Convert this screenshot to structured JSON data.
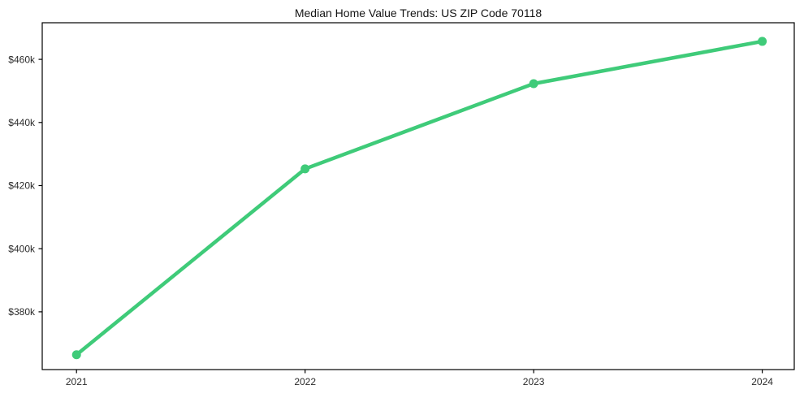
{
  "figure": {
    "background": "#ffffff"
  },
  "chart_data": {
    "type": "line",
    "title": "Median Home Value Trends: US ZIP Code 70118",
    "x": [
      2021,
      2022,
      2023,
      2024
    ],
    "values": [
      366400,
      425300,
      452300,
      465700
    ],
    "xlabel": "",
    "ylabel": "",
    "xlim": [
      2020.85,
      2024.14
    ],
    "ylim": [
      361700,
      471600
    ],
    "xticks": {
      "values": [
        2021,
        2022,
        2023,
        2024
      ],
      "labels": [
        "2021",
        "2022",
        "2023",
        "2024"
      ]
    },
    "yticks": {
      "values": [
        380000,
        400000,
        420000,
        440000,
        460000
      ],
      "labels": [
        "$380k",
        "$400k",
        "$420k",
        "$440k",
        "$460k"
      ]
    },
    "grid": false,
    "legend": "none",
    "frame": true,
    "marker": "circle",
    "line_width": 4.5,
    "marker_radius": 5.5,
    "colors": {
      "line": "#3fcb79",
      "spine": "#000000",
      "tick_label": "#2b2b2b",
      "title": "#151515",
      "background": "#ffffff"
    }
  }
}
